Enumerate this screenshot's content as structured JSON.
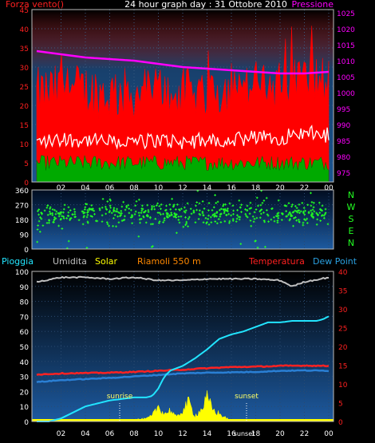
{
  "header": {
    "left": "Forza vento()",
    "title": "24 hour graph day : 31 Ottobre 2010",
    "right": "Pressione"
  },
  "legend2": {
    "pioggia": "Pioggia",
    "umidita": "Umidita",
    "solar": "Solar",
    "location": "Riamoli 550 m",
    "temperatura": "Temperatura",
    "dewpoint": "Dew Point"
  },
  "compass": [
    "N",
    "W",
    "S",
    "E",
    "N"
  ],
  "annotations": {
    "sunrise": "sunrise",
    "sunset": "sunset",
    "sunset_axis": "sunset"
  },
  "colors": {
    "wind_gust": "#ff0000",
    "wind_avg": "#ffffff",
    "wind_low": "#00aa00",
    "pressure": "#ff00ff",
    "direction": "#22ff22",
    "humidity": "#c0c0c0",
    "temperature": "#ff2222",
    "dewpoint": "#2a7fd4",
    "rain": "#22e5ff",
    "solar": "#ffff00"
  },
  "chart_data": [
    {
      "type": "line",
      "title": "24 hour graph day : 31 Ottobre 2010",
      "x_ticks": [
        "02",
        "04",
        "06",
        "08",
        "10",
        "12",
        "14",
        "16",
        "18",
        "20",
        "22",
        "00"
      ],
      "y_left_ticks": [
        0,
        5,
        10,
        15,
        20,
        25,
        30,
        35,
        40,
        45
      ],
      "y_right_ticks": [
        975,
        980,
        985,
        990,
        995,
        1000,
        1005,
        1010,
        1015,
        1020,
        1025
      ],
      "ylim_left": [
        0,
        45
      ],
      "ylim_right": [
        972,
        1026
      ],
      "series": [
        {
          "name": "Forza vento()",
          "axis": "left",
          "hours": [
            0,
            2,
            4,
            6,
            8,
            10,
            12,
            14,
            16,
            18,
            20,
            22,
            24
          ],
          "values": [
            14,
            15,
            15,
            14,
            14,
            15,
            14,
            15,
            15,
            16,
            16,
            18,
            17
          ]
        },
        {
          "name": "Pressione",
          "axis": "right",
          "hours": [
            0,
            2,
            4,
            6,
            8,
            10,
            12,
            14,
            16,
            18,
            20,
            22,
            24
          ],
          "values": [
            1013,
            1012,
            1011,
            1010.5,
            1010,
            1009,
            1008,
            1007.5,
            1007,
            1006.5,
            1006,
            1006,
            1006.5
          ]
        }
      ]
    },
    {
      "type": "scatter",
      "y_ticks": [
        0,
        90,
        180,
        270,
        360
      ],
      "ylim": [
        0,
        360
      ],
      "center_deg": 215
    },
    {
      "type": "line",
      "x_ticks": [
        "02",
        "04",
        "06",
        "08",
        "10",
        "12",
        "14",
        "16",
        "18",
        "20",
        "22",
        "00"
      ],
      "y_left_ticks": [
        0,
        10,
        20,
        30,
        40,
        50,
        60,
        70,
        80,
        90,
        100
      ],
      "y_right_ticks": [
        0,
        5,
        10,
        15,
        20,
        25,
        30,
        35,
        40
      ],
      "ylim_left": [
        0,
        100
      ],
      "ylim_right": [
        0,
        40
      ],
      "series": [
        {
          "name": "Umidita",
          "axis": "left",
          "hours": [
            0,
            2,
            4,
            6,
            8,
            10,
            12,
            14,
            16,
            18,
            20,
            21,
            22,
            24
          ],
          "values": [
            93,
            96,
            96,
            95,
            96,
            94,
            94,
            95,
            95,
            95,
            94,
            90,
            93,
            96
          ]
        },
        {
          "name": "Temperatura",
          "axis": "right",
          "hours": [
            0,
            2,
            4,
            6,
            8,
            10,
            12,
            14,
            16,
            18,
            20,
            22,
            24
          ],
          "values": [
            12.5,
            12.8,
            12.9,
            13.0,
            13.2,
            13.5,
            13.8,
            14.2,
            14.5,
            14.6,
            14.8,
            14.9,
            14.8
          ]
        },
        {
          "name": "Dew Point",
          "axis": "right",
          "hours": [
            0,
            2,
            4,
            6,
            8,
            10,
            12,
            14,
            16,
            18,
            20,
            22,
            24
          ],
          "values": [
            10.5,
            11.0,
            11.3,
            11.6,
            12.0,
            12.4,
            12.8,
            13.0,
            13.1,
            13.2,
            13.5,
            13.6,
            13.5
          ]
        },
        {
          "name": "Pioggia",
          "axis": "left",
          "hours": [
            0,
            1,
            2,
            3,
            4,
            5,
            6,
            7,
            8,
            9,
            9.5,
            10,
            10.5,
            11,
            12,
            13,
            14,
            15,
            16,
            17,
            18,
            19,
            20,
            21,
            22,
            23,
            23.5,
            24
          ],
          "values": [
            0,
            0,
            2,
            6,
            10,
            12,
            14,
            15,
            16,
            16,
            17,
            22,
            30,
            34,
            37,
            42,
            48,
            55,
            58,
            60,
            63,
            66,
            66,
            67,
            67,
            67,
            68,
            70
          ]
        },
        {
          "name": "Solar",
          "axis": "right",
          "hours": [
            6.5,
            7,
            8,
            9,
            9.5,
            10,
            10.5,
            11,
            11.5,
            12,
            12.5,
            13,
            13.5,
            14,
            14.5,
            15,
            15.5,
            16,
            16.5
          ],
          "values": [
            0,
            0.2,
            0.5,
            0.7,
            1.5,
            4,
            2,
            3,
            1,
            3,
            5,
            1.5,
            3,
            6,
            3,
            2,
            1,
            0.3,
            0
          ]
        }
      ]
    }
  ]
}
